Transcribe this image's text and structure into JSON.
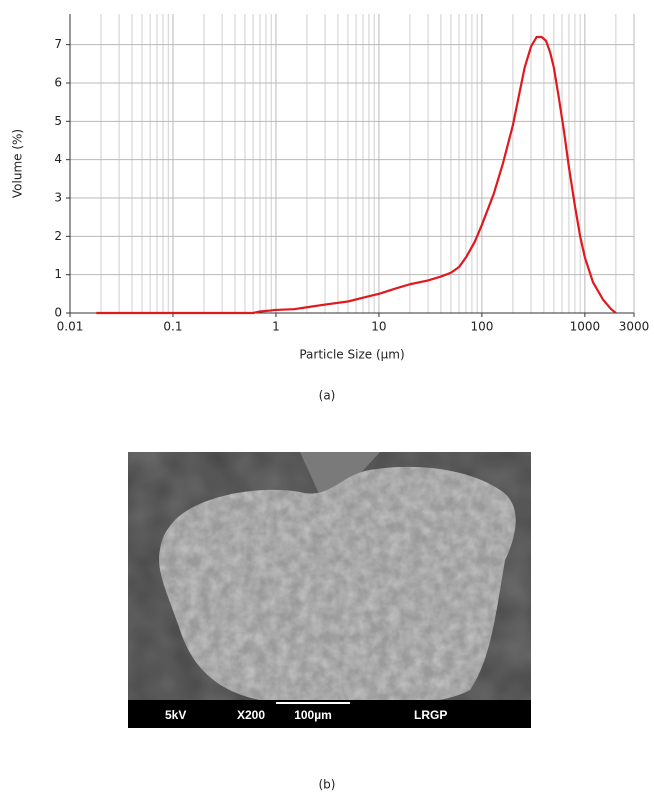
{
  "chart_data": {
    "type": "line",
    "xlabel": "Particle Size (µm)",
    "ylabel": "Volume (%)",
    "x": [
      0.018,
      0.1,
      0.6,
      0.7,
      0.85,
      1,
      1.5,
      2,
      3,
      5,
      7,
      10,
      15,
      20,
      30,
      40,
      50,
      60,
      70,
      85,
      100,
      130,
      160,
      200,
      230,
      260,
      300,
      340,
      380,
      420,
      460,
      500,
      560,
      630,
      700,
      800,
      900,
      1000,
      1200,
      1500,
      1800,
      2000
    ],
    "values": [
      0,
      0,
      0,
      0.04,
      0.06,
      0.08,
      0.1,
      0.15,
      0.22,
      0.3,
      0.4,
      0.5,
      0.65,
      0.75,
      0.85,
      0.95,
      1.05,
      1.2,
      1.45,
      1.85,
      2.3,
      3.1,
      3.9,
      4.9,
      5.7,
      6.4,
      6.95,
      7.2,
      7.2,
      7.1,
      6.8,
      6.4,
      5.6,
      4.7,
      3.8,
      2.8,
      2.0,
      1.45,
      0.8,
      0.35,
      0.1,
      0
    ],
    "color": "#e0191e",
    "xlim": [
      0.01,
      3000
    ],
    "xticks": [
      0.01,
      0.1,
      1,
      10,
      100,
      1000,
      3000
    ],
    "xscale": "log",
    "ylim": [
      0,
      7.8
    ],
    "yticks": [
      0,
      1,
      2,
      3,
      4,
      5,
      6,
      7
    ],
    "grid": true,
    "minor_grid": true
  },
  "figure": {
    "caption_a": "(a)",
    "caption_b": "(b)",
    "sem_labels": [
      "5kV",
      "X200",
      "100µm",
      "LRGP"
    ]
  }
}
